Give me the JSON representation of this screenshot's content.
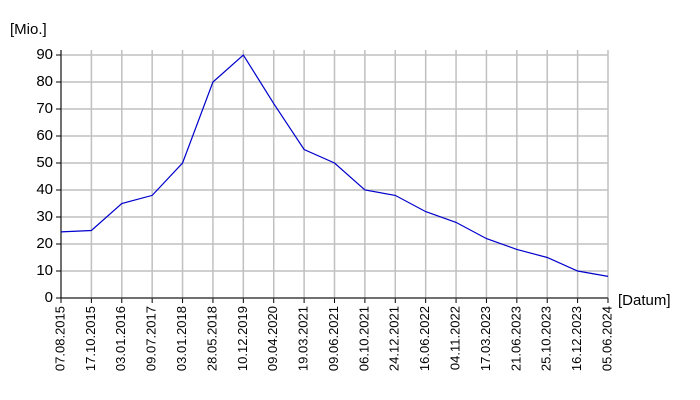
{
  "chart_data": {
    "type": "line",
    "y_label": "[Mio.]",
    "x_label": "[Datum]",
    "categories": [
      "07.08.2015",
      "17.10.2015",
      "03.01.2016",
      "09.07.2017",
      "03.01.2018",
      "28.05.2018",
      "10.12.2019",
      "09.04.2020",
      "19.03.2021",
      "09.06.2021",
      "06.10.2021",
      "24.12.2021",
      "16.06.2022",
      "04.11.2022",
      "17.03.2023",
      "21.06.2023",
      "25.10.2023",
      "16.12.2023",
      "05.06.2024"
    ],
    "values": [
      24.5,
      25,
      35,
      38,
      50,
      80,
      90,
      72,
      55,
      50,
      40,
      38,
      32,
      28,
      22,
      18,
      15,
      10,
      8
    ],
    "color": "#0000cc",
    "ylim": [
      0,
      90
    ],
    "yticks": [
      0,
      10,
      20,
      30,
      40,
      50,
      60,
      70,
      80,
      90
    ],
    "grid": true
  }
}
